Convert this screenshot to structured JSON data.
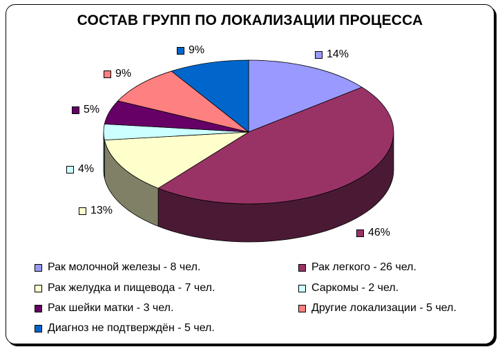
{
  "chart_data": {
    "type": "pie",
    "title": "СОСТАВ ГРУПП ПО ЛОКАЛИЗАЦИИ ПРОЦЕССА",
    "three_d": true,
    "slices": [
      {
        "label": "Рак молочной железы - 8 чел.",
        "value": 8,
        "percent_label": "14%",
        "color": "#9999FF",
        "side_color": "#6B6BB3"
      },
      {
        "label": "Рак легкого - 26 чел.",
        "value": 26,
        "percent_label": "46%",
        "color": "#993366",
        "side_color": "#4A1A34"
      },
      {
        "label": "Рак желудка и пищевода - 7 чел.",
        "value": 7,
        "percent_label": "13%",
        "color": "#FFFFCC",
        "side_color": "#808066"
      },
      {
        "label": "Саркомы - 2 чел.",
        "value": 2,
        "percent_label": "4%",
        "color": "#CCFFFF",
        "side_color": "#669999"
      },
      {
        "label": "Рак шейки матки - 3 чел.",
        "value": 3,
        "percent_label": "5%",
        "color": "#660066",
        "side_color": "#330033"
      },
      {
        "label": "Другие локализации - 5 чел.",
        "value": 5,
        "percent_label": "9%",
        "color": "#FF8080",
        "side_color": "#994D4D"
      },
      {
        "label": "Диагноз не подтверждён - 5 чел.",
        "value": 5,
        "percent_label": "9%",
        "color": "#0066CC",
        "side_color": "#003D7A"
      }
    ],
    "legend_placement": "bottom"
  }
}
